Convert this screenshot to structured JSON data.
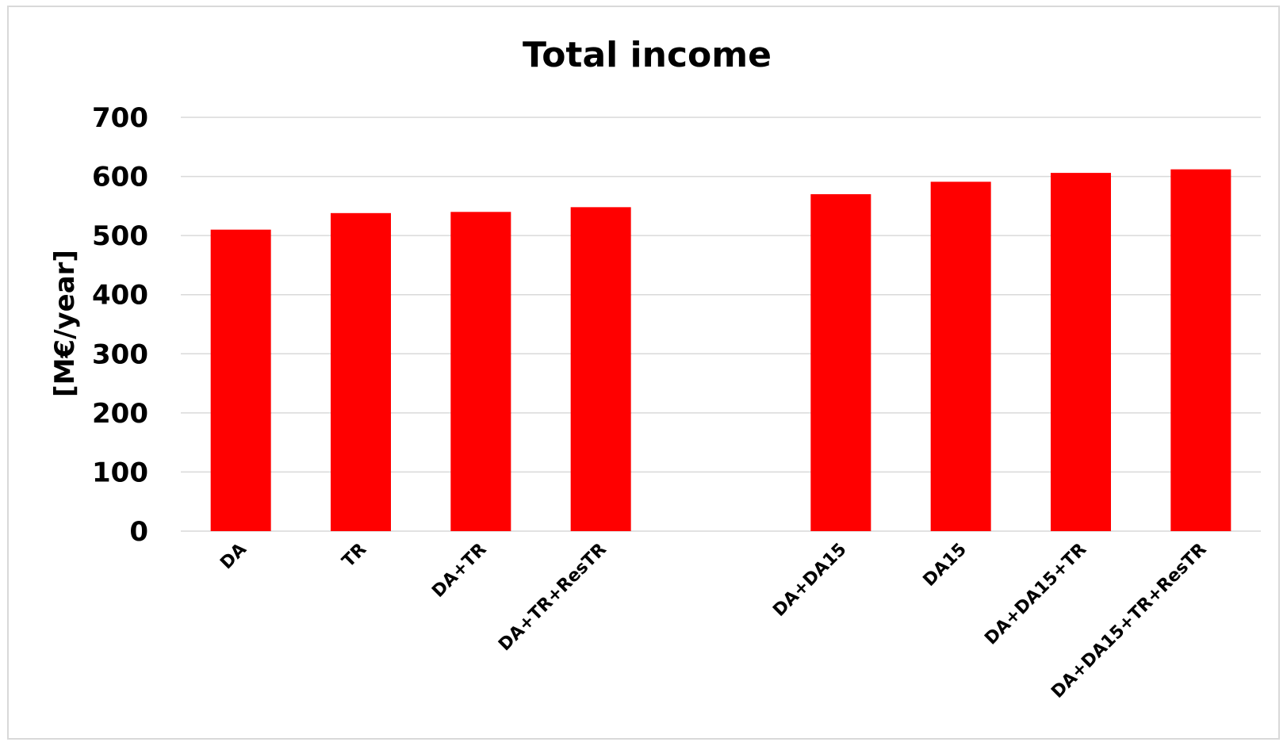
{
  "chart_data": {
    "type": "bar",
    "title": "Total income",
    "xlabel": "",
    "ylabel": "[M€/year]",
    "ylim": [
      0,
      700
    ],
    "yticks": [
      0,
      100,
      200,
      300,
      400,
      500,
      600,
      700
    ],
    "grid": true,
    "legend": "none",
    "bar_color": "#ff0000",
    "grid_color": "#d9d9d9",
    "categories": [
      "DA",
      "TR",
      "DA+TR",
      "DA+TR+ResTR",
      "",
      "DA+DA15",
      "DA15",
      "DA+DA15+TR",
      "DA+DA15+TR+ResTR"
    ],
    "values": [
      510,
      538,
      540,
      548,
      null,
      570,
      591,
      606,
      612
    ]
  }
}
